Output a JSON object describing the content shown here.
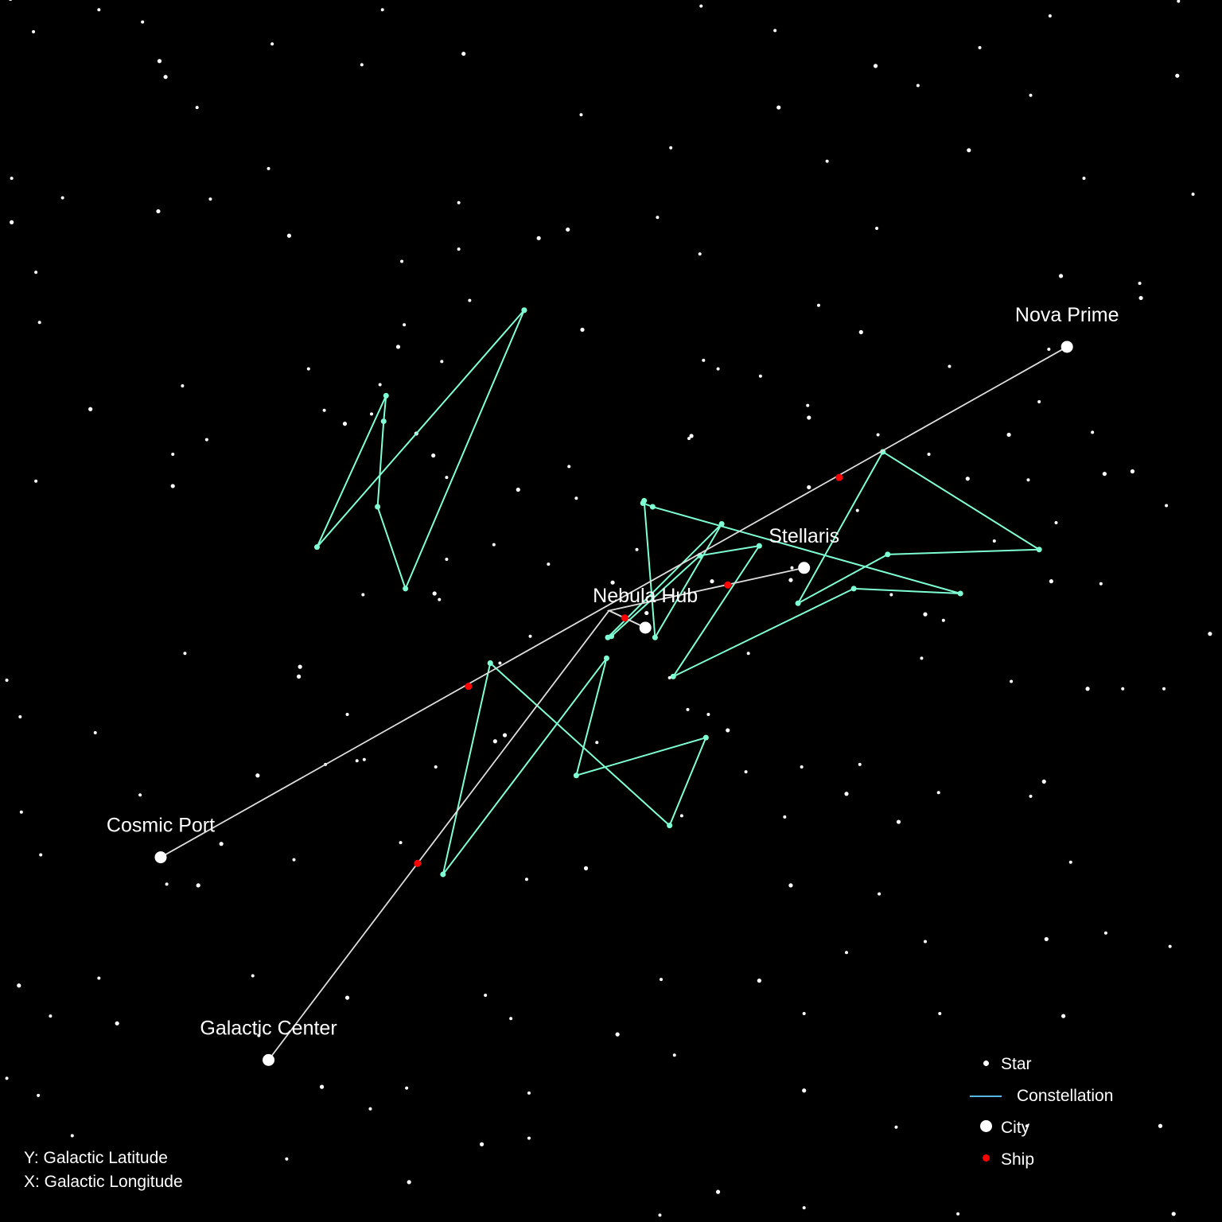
{
  "chart_data": {
    "type": "scatter",
    "title": "",
    "xlabel": "",
    "ylabel": "",
    "axis_notes": {
      "y": "Y: Galactic Latitude",
      "x": "X: Galactic Longitude"
    },
    "xlim": [
      0,
      100
    ],
    "ylim": [
      0,
      100
    ],
    "grid": false,
    "background_color": "#000000",
    "legend_placement": "bottom-right",
    "legend": [
      {
        "key": "star",
        "label": "Star"
      },
      {
        "key": "constellation",
        "label": "Constellation"
      },
      {
        "key": "city",
        "label": "City"
      },
      {
        "key": "ship",
        "label": "Ship"
      }
    ],
    "colors": {
      "star": "#ffffff",
      "constellation_line": "#7fffd4",
      "constellation_legend": "#57b6e0",
      "city": "#ffffff",
      "route": "#dddddd",
      "ship": "#ff0000"
    },
    "stars": [
      [
        0.6,
        100.1
      ],
      [
        7.9,
        99.2
      ],
      [
        11.5,
        98.2
      ],
      [
        13.4,
        93.7
      ],
      [
        16.0,
        91.2
      ],
      [
        31.3,
        99.2
      ],
      [
        45.8,
        100.4
      ],
      [
        57.6,
        99.5
      ],
      [
        63.7,
        97.5
      ],
      [
        72.0,
        94.6
      ],
      [
        80.6,
        96.1
      ],
      [
        86.4,
        98.7
      ],
      [
        93.6,
        100.2
      ],
      [
        97.0,
        99.9
      ],
      [
        2.5,
        97.4
      ],
      [
        12.9,
        95.0
      ],
      [
        22.2,
        96.4
      ],
      [
        29.6,
        94.7
      ],
      [
        38.0,
        95.6
      ],
      [
        47.7,
        90.6
      ],
      [
        55.1,
        87.9
      ],
      [
        64.0,
        91.2
      ],
      [
        75.5,
        93.0
      ],
      [
        84.8,
        92.2
      ],
      [
        96.9,
        93.8
      ],
      [
        0.7,
        85.4
      ],
      [
        4.9,
        83.8
      ],
      [
        12.8,
        82.7
      ],
      [
        17.1,
        83.7
      ],
      [
        21.9,
        86.2
      ],
      [
        23.6,
        80.7
      ],
      [
        32.9,
        78.6
      ],
      [
        37.6,
        79.6
      ],
      [
        44.2,
        80.5
      ],
      [
        57.5,
        79.2
      ],
      [
        68.0,
        86.8
      ],
      [
        79.7,
        87.7
      ],
      [
        89.2,
        85.4
      ],
      [
        98.2,
        84.1
      ],
      [
        0.7,
        81.8
      ],
      [
        2.7,
        77.7
      ],
      [
        37.6,
        83.4
      ],
      [
        46.6,
        81.2
      ],
      [
        54.0,
        82.2
      ],
      [
        72.1,
        81.3
      ],
      [
        87.3,
        77.4
      ],
      [
        93.8,
        76.8
      ],
      [
        3.0,
        73.6
      ],
      [
        7.2,
        66.5
      ],
      [
        14.8,
        68.4
      ],
      [
        25.2,
        69.8
      ],
      [
        32.6,
        71.6
      ],
      [
        33.1,
        73.4
      ],
      [
        38.5,
        75.4
      ],
      [
        47.8,
        73.0
      ],
      [
        57.8,
        70.5
      ],
      [
        67.3,
        75.0
      ],
      [
        70.8,
        72.8
      ],
      [
        78.1,
        70.0
      ],
      [
        86.3,
        71.4
      ],
      [
        93.9,
        75.6
      ],
      [
        0.3,
        44.3
      ],
      [
        1.4,
        41.3
      ],
      [
        14.0,
        60.2
      ],
      [
        16.8,
        64.0
      ],
      [
        26.5,
        66.4
      ],
      [
        35.5,
        62.7
      ],
      [
        36.2,
        70.4
      ],
      [
        56.6,
        64.1
      ],
      [
        66.5,
        65.8
      ],
      [
        72.2,
        64.4
      ],
      [
        76.4,
        62.8
      ],
      [
        83.0,
        64.4
      ],
      [
        89.9,
        64.6
      ],
      [
        85.5,
        67.1
      ],
      [
        93.2,
        61.4
      ],
      [
        2.7,
        60.6
      ],
      [
        14.0,
        62.8
      ],
      [
        28.2,
        65.3
      ],
      [
        30.4,
        66.1
      ],
      [
        31.1,
        68.5
      ],
      [
        34.1,
        64.5
      ],
      [
        36.6,
        60.9
      ],
      [
        40.5,
        55.4
      ],
      [
        42.5,
        59.9
      ],
      [
        46.7,
        61.8
      ],
      [
        52.3,
        55.0
      ],
      [
        56.8,
        64.3
      ],
      [
        66.4,
        66.8
      ],
      [
        70.5,
        58.2
      ],
      [
        79.6,
        60.8
      ],
      [
        84.6,
        60.7
      ],
      [
        86.9,
        57.2
      ],
      [
        90.9,
        61.2
      ],
      [
        96.0,
        58.6
      ],
      [
        29.7,
        51.3
      ],
      [
        35.6,
        51.4
      ],
      [
        36.6,
        54.2
      ],
      [
        47.3,
        59.2
      ],
      [
        66.5,
        60.1
      ],
      [
        65.1,
        53.5
      ],
      [
        73.3,
        51.3
      ],
      [
        76.1,
        49.7
      ],
      [
        81.8,
        55.7
      ],
      [
        90.6,
        52.2
      ],
      [
        24.4,
        44.6
      ],
      [
        36.0,
        50.9
      ],
      [
        45.0,
        53.8
      ],
      [
        58.5,
        52.4
      ],
      [
        70.2,
        51.9
      ],
      [
        77.6,
        49.2
      ],
      [
        86.5,
        52.4
      ],
      [
        92.4,
        43.6
      ],
      [
        95.8,
        43.6
      ],
      [
        99.6,
        48.1
      ],
      [
        28.4,
        41.5
      ],
      [
        41.0,
        45.7
      ],
      [
        50.3,
        52.3
      ],
      [
        56.5,
        41.9
      ],
      [
        61.5,
        46.5
      ],
      [
        65.0,
        52.5
      ],
      [
        75.8,
        46.1
      ],
      [
        83.2,
        44.2
      ],
      [
        89.5,
        43.6
      ],
      [
        7.6,
        40.0
      ],
      [
        15.0,
        46.5
      ],
      [
        24.5,
        45.4
      ],
      [
        29.2,
        37.7
      ],
      [
        35.7,
        37.2
      ],
      [
        41.4,
        39.8
      ],
      [
        43.5,
        47.9
      ],
      [
        58.2,
        41.5
      ],
      [
        59.8,
        40.2
      ],
      [
        65.9,
        37.2
      ],
      [
        70.7,
        37.4
      ],
      [
        85.9,
        36.0
      ],
      [
        1.5,
        33.5
      ],
      [
        11.3,
        34.9
      ],
      [
        21.0,
        36.5
      ],
      [
        26.6,
        37.4
      ],
      [
        29.8,
        37.8
      ],
      [
        40.6,
        39.3
      ],
      [
        49.0,
        39.2
      ],
      [
        61.3,
        36.8
      ],
      [
        69.6,
        35.0
      ],
      [
        77.2,
        35.1
      ],
      [
        84.8,
        34.8
      ],
      [
        18.0,
        30.9
      ],
      [
        13.5,
        27.6
      ],
      [
        32.8,
        31.0
      ],
      [
        48.1,
        28.9
      ],
      [
        56.0,
        33.2
      ],
      [
        64.5,
        33.1
      ],
      [
        73.9,
        32.7
      ],
      [
        88.1,
        29.4
      ],
      [
        3.1,
        30.0
      ],
      [
        16.1,
        27.5
      ],
      [
        24.0,
        29.6
      ],
      [
        43.2,
        28.0
      ],
      [
        65.0,
        27.5
      ],
      [
        72.3,
        26.8
      ],
      [
        76.1,
        22.9
      ],
      [
        86.1,
        23.1
      ],
      [
        91.0,
        23.6
      ],
      [
        96.3,
        22.5
      ],
      [
        1.3,
        19.3
      ],
      [
        7.9,
        19.9
      ],
      [
        20.6,
        20.1
      ],
      [
        28.4,
        18.3
      ],
      [
        39.8,
        18.5
      ],
      [
        54.3,
        19.8
      ],
      [
        62.4,
        19.7
      ],
      [
        69.6,
        22.0
      ],
      [
        3.9,
        16.8
      ],
      [
        9.4,
        16.2
      ],
      [
        21.1,
        15.2
      ],
      [
        41.9,
        16.6
      ],
      [
        50.7,
        15.3
      ],
      [
        66.1,
        17.0
      ],
      [
        77.3,
        17.0
      ],
      [
        87.5,
        16.8
      ],
      [
        0.3,
        11.7
      ],
      [
        2.9,
        10.3
      ],
      [
        26.3,
        11.0
      ],
      [
        30.3,
        9.2
      ],
      [
        33.3,
        10.9
      ],
      [
        39.5,
        6.3
      ],
      [
        43.4,
        10.5
      ],
      [
        55.4,
        13.6
      ],
      [
        66.1,
        10.7
      ],
      [
        73.7,
        7.7
      ],
      [
        84.5,
        7.8
      ],
      [
        95.5,
        7.8
      ],
      [
        5.7,
        7.0
      ],
      [
        23.4,
        5.1
      ],
      [
        33.5,
        3.2
      ],
      [
        43.4,
        6.8
      ],
      [
        54.2,
        0.5
      ],
      [
        59.0,
        2.4
      ],
      [
        66.1,
        1.1
      ],
      [
        78.8,
        0.6
      ],
      [
        96.6,
        0.6
      ],
      [
        62.5,
        69.2
      ],
      [
        59.0,
        69.8
      ],
      [
        53.1,
        49.8
      ],
      [
        55.0,
        44.5
      ]
    ],
    "constellations": [
      {
        "points": [
          [
            43.0,
            74.6
          ],
          [
            33.2,
            51.8
          ],
          [
            30.9,
            58.5
          ],
          [
            31.4,
            65.5
          ],
          [
            31.6,
            67.6
          ],
          [
            25.9,
            55.2
          ],
          [
            43.0,
            74.6
          ]
        ]
      },
      {
        "points": [
          [
            52.9,
            59.0
          ],
          [
            53.8,
            47.8
          ],
          [
            59.3,
            57.1
          ],
          [
            49.9,
            47.8
          ]
        ]
      },
      {
        "points": [
          [
            52.8,
            58.8
          ],
          [
            53.6,
            58.5
          ],
          [
            79.0,
            51.4
          ],
          [
            70.2,
            51.8
          ],
          [
            55.3,
            44.6
          ],
          [
            62.4,
            55.3
          ],
          [
            57.5,
            54.5
          ],
          [
            50.2,
            47.9
          ]
        ]
      },
      {
        "points": [
          [
            72.6,
            63.0
          ],
          [
            85.5,
            55.0
          ],
          [
            73.0,
            54.6
          ],
          [
            65.6,
            50.6
          ],
          [
            72.6,
            63.0
          ]
        ]
      },
      {
        "points": [
          [
            40.2,
            45.7
          ],
          [
            55.0,
            32.4
          ],
          [
            58.0,
            39.6
          ],
          [
            47.3,
            36.5
          ],
          [
            49.8,
            46.1
          ],
          [
            36.3,
            28.4
          ],
          [
            40.2,
            45.7
          ]
        ]
      }
    ],
    "cities": [
      {
        "name": "Nova Prime",
        "x": 87.8,
        "y": 71.6
      },
      {
        "name": "Stellaris",
        "x": 66.1,
        "y": 53.5
      },
      {
        "name": "Nebula Hub",
        "x": 53.0,
        "y": 48.6
      },
      {
        "name": "Cosmic Port",
        "x": 13.0,
        "y": 29.8
      },
      {
        "name": "Galactic Center",
        "x": 21.9,
        "y": 13.2
      }
    ],
    "routes": [
      {
        "from": "Cosmic Port",
        "to": "Nova Prime"
      },
      {
        "from": "Galactic Center",
        "to": "Nebula Hub",
        "via": [
          [
            50.0,
            50.0
          ]
        ]
      },
      {
        "from": "Nebula Hub",
        "to": "Stellaris",
        "via": [
          [
            50.0,
            50.0
          ]
        ]
      }
    ],
    "ships": [
      {
        "x": 69.0,
        "y": 60.9
      },
      {
        "x": 59.8,
        "y": 52.1
      },
      {
        "x": 51.3,
        "y": 49.4
      },
      {
        "x": 38.4,
        "y": 43.8
      },
      {
        "x": 34.2,
        "y": 29.3
      }
    ]
  }
}
